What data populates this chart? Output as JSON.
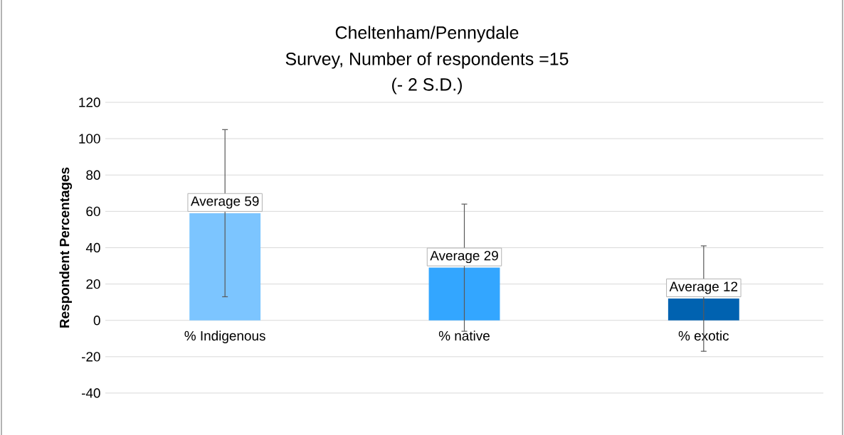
{
  "chart_data": {
    "type": "bar",
    "title": "Cheltenham/Pennydale",
    "subtitle": "Survey, Number of respondents =15",
    "annotations": [
      "(- 2 S.D.)"
    ],
    "ylabel": "Respondent Percentages",
    "categories": [
      "% Indigenous",
      "% native",
      "% exotic"
    ],
    "values": [
      59,
      29,
      12
    ],
    "colors": [
      "#7cc5ff",
      "#33a6ff",
      "#0062b0"
    ],
    "errors": [
      46,
      35,
      29
    ],
    "value_labels": [
      "Average 59",
      "Average 29",
      "Average 12"
    ],
    "ylim": [
      -40,
      120
    ],
    "yticks": [
      -40,
      -20,
      0,
      20,
      40,
      60,
      80,
      100,
      120
    ],
    "grid": "y"
  }
}
